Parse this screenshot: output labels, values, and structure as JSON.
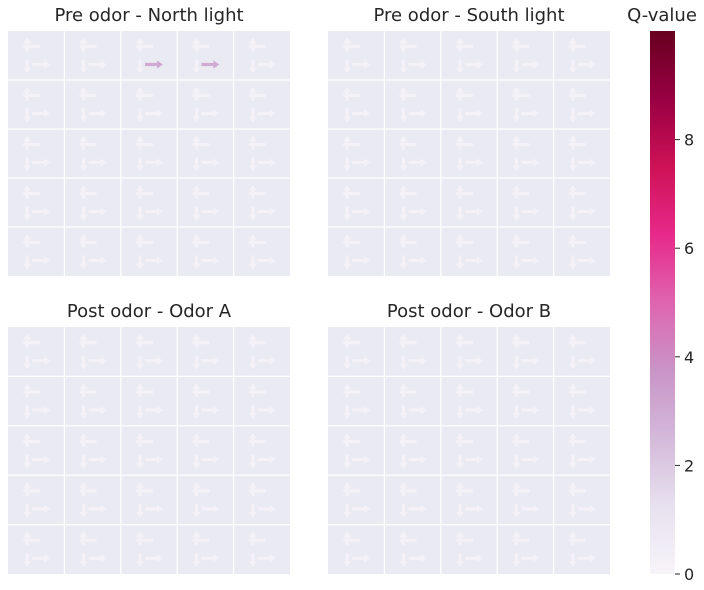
{
  "chart_data": [
    {
      "type": "heatmap",
      "title": "Pre odor - North light",
      "grid": [
        5,
        5
      ],
      "actions": [
        "up",
        "down",
        "left",
        "right"
      ],
      "q_values": [
        [
          [
            0.2,
            0.2,
            0.2,
            0.2
          ],
          [
            0.2,
            0.2,
            0.2,
            0.2
          ],
          [
            0.2,
            0.2,
            0.2,
            3.0
          ],
          [
            0.2,
            0.2,
            0.2,
            3.0
          ],
          [
            0.2,
            0.2,
            0.2,
            0.2
          ]
        ],
        [
          [
            0.2,
            0.2,
            0.2,
            0.2
          ],
          [
            0.2,
            0.2,
            0.2,
            0.2
          ],
          [
            0.2,
            0.2,
            0.2,
            0.2
          ],
          [
            0.2,
            0.2,
            0.2,
            0.2
          ],
          [
            0.2,
            0.2,
            0.2,
            0.2
          ]
        ],
        [
          [
            0.2,
            0.2,
            0.2,
            0.2
          ],
          [
            0.2,
            0.2,
            0.2,
            0.2
          ],
          [
            0.2,
            0.2,
            0.2,
            0.2
          ],
          [
            0.2,
            0.2,
            0.2,
            0.2
          ],
          [
            0.2,
            0.2,
            0.2,
            0.2
          ]
        ],
        [
          [
            0.2,
            0.2,
            0.2,
            0.2
          ],
          [
            0.2,
            0.2,
            0.2,
            0.2
          ],
          [
            0.2,
            0.2,
            0.2,
            0.2
          ],
          [
            0.2,
            0.2,
            0.2,
            0.2
          ],
          [
            0.2,
            0.2,
            0.2,
            0.2
          ]
        ],
        [
          [
            0.2,
            0.2,
            0.2,
            0.2
          ],
          [
            0.2,
            0.2,
            0.2,
            0.2
          ],
          [
            0.2,
            0.2,
            0.2,
            0.2
          ],
          [
            0.2,
            0.2,
            0.2,
            0.2
          ],
          [
            0.2,
            0.2,
            0.2,
            0.2
          ]
        ]
      ]
    },
    {
      "type": "heatmap",
      "title": "Pre odor - South light",
      "grid": [
        5,
        5
      ],
      "actions": [
        "up",
        "down",
        "left",
        "right"
      ],
      "q_values": [
        [
          [
            0.2,
            0.2,
            0.2,
            0.2
          ],
          [
            0.2,
            0.2,
            0.2,
            0.2
          ],
          [
            0.2,
            0.2,
            0.2,
            0.2
          ],
          [
            0.2,
            0.2,
            0.2,
            0.2
          ],
          [
            0.2,
            0.2,
            0.2,
            0.2
          ]
        ],
        [
          [
            0.2,
            0.2,
            0.2,
            0.2
          ],
          [
            0.2,
            0.2,
            0.2,
            0.2
          ],
          [
            0.2,
            0.2,
            0.2,
            0.2
          ],
          [
            0.2,
            0.2,
            0.2,
            0.2
          ],
          [
            0.2,
            0.2,
            0.2,
            0.2
          ]
        ],
        [
          [
            0.2,
            0.2,
            0.2,
            0.2
          ],
          [
            0.2,
            0.2,
            0.2,
            0.2
          ],
          [
            0.2,
            0.2,
            0.2,
            0.2
          ],
          [
            0.2,
            0.2,
            0.2,
            0.2
          ],
          [
            0.2,
            0.2,
            0.2,
            0.2
          ]
        ],
        [
          [
            0.2,
            0.2,
            0.2,
            0.2
          ],
          [
            0.2,
            0.2,
            0.2,
            0.2
          ],
          [
            0.2,
            0.2,
            0.2,
            0.2
          ],
          [
            0.2,
            0.2,
            0.2,
            0.2
          ],
          [
            0.2,
            0.2,
            0.2,
            0.2
          ]
        ],
        [
          [
            0.2,
            0.2,
            0.2,
            0.2
          ],
          [
            0.2,
            0.2,
            0.2,
            0.2
          ],
          [
            0.2,
            0.2,
            0.2,
            0.2
          ],
          [
            0.2,
            0.2,
            0.2,
            0.2
          ],
          [
            0.2,
            0.2,
            0.2,
            0.2
          ]
        ]
      ]
    },
    {
      "type": "heatmap",
      "title": "Post odor - Odor A",
      "grid": [
        5,
        5
      ],
      "actions": [
        "up",
        "down",
        "left",
        "right"
      ],
      "q_values": [
        [
          [
            0.2,
            0.2,
            0.2,
            0.2
          ],
          [
            0.2,
            0.2,
            0.2,
            0.2
          ],
          [
            0.2,
            0.2,
            0.2,
            0.2
          ],
          [
            0.2,
            0.2,
            0.2,
            0.2
          ],
          [
            0.2,
            0.2,
            0.2,
            0.2
          ]
        ],
        [
          [
            0.2,
            0.2,
            0.2,
            0.2
          ],
          [
            0.2,
            0.2,
            0.2,
            0.2
          ],
          [
            0.2,
            0.2,
            0.2,
            0.2
          ],
          [
            0.2,
            0.2,
            0.2,
            0.2
          ],
          [
            0.2,
            0.2,
            0.2,
            0.2
          ]
        ],
        [
          [
            0.2,
            0.2,
            0.2,
            0.2
          ],
          [
            0.2,
            0.2,
            0.2,
            0.2
          ],
          [
            0.2,
            0.2,
            0.2,
            0.2
          ],
          [
            0.2,
            0.2,
            0.2,
            0.2
          ],
          [
            0.2,
            0.2,
            0.2,
            0.2
          ]
        ],
        [
          [
            0.2,
            0.2,
            0.2,
            0.2
          ],
          [
            0.2,
            0.2,
            0.2,
            0.2
          ],
          [
            0.2,
            0.2,
            0.2,
            0.2
          ],
          [
            0.2,
            0.2,
            0.2,
            0.2
          ],
          [
            0.2,
            0.2,
            0.2,
            0.2
          ]
        ],
        [
          [
            0.2,
            0.2,
            0.2,
            0.2
          ],
          [
            0.2,
            0.2,
            0.2,
            0.2
          ],
          [
            0.2,
            0.2,
            0.2,
            0.2
          ],
          [
            0.2,
            0.2,
            0.2,
            0.2
          ],
          [
            0.2,
            0.2,
            0.2,
            0.2
          ]
        ]
      ]
    },
    {
      "type": "heatmap",
      "title": "Post odor - Odor B",
      "grid": [
        5,
        5
      ],
      "actions": [
        "up",
        "down",
        "left",
        "right"
      ],
      "q_values": [
        [
          [
            0.2,
            0.2,
            0.2,
            0.2
          ],
          [
            0.2,
            0.2,
            0.2,
            0.2
          ],
          [
            0.2,
            0.2,
            0.2,
            0.2
          ],
          [
            0.2,
            0.2,
            0.2,
            0.2
          ],
          [
            0.2,
            0.2,
            0.2,
            0.2
          ]
        ],
        [
          [
            0.2,
            0.2,
            0.2,
            0.2
          ],
          [
            0.2,
            0.2,
            0.2,
            0.2
          ],
          [
            0.2,
            0.2,
            0.2,
            0.2
          ],
          [
            0.2,
            0.2,
            0.2,
            0.2
          ],
          [
            0.2,
            0.2,
            0.2,
            0.2
          ]
        ],
        [
          [
            0.2,
            0.2,
            0.2,
            0.2
          ],
          [
            0.2,
            0.2,
            0.2,
            0.2
          ],
          [
            0.2,
            0.2,
            0.2,
            0.2
          ],
          [
            0.2,
            0.2,
            0.2,
            0.2
          ],
          [
            0.2,
            0.2,
            0.2,
            0.2
          ]
        ],
        [
          [
            0.2,
            0.2,
            0.2,
            0.2
          ],
          [
            0.2,
            0.2,
            0.2,
            0.2
          ],
          [
            0.2,
            0.2,
            0.2,
            0.2
          ],
          [
            0.2,
            0.2,
            0.2,
            0.2
          ],
          [
            0.2,
            0.2,
            0.2,
            0.2
          ]
        ],
        [
          [
            0.2,
            0.2,
            0.2,
            0.2
          ],
          [
            0.2,
            0.2,
            0.2,
            0.2
          ],
          [
            0.2,
            0.2,
            0.2,
            0.2
          ],
          [
            0.2,
            0.2,
            0.2,
            0.2
          ],
          [
            0.2,
            0.2,
            0.2,
            0.2
          ]
        ]
      ]
    }
  ],
  "colorbar": {
    "label": "Q-value",
    "range": [
      0,
      10
    ],
    "ticks": [
      0,
      2,
      4,
      6,
      8
    ],
    "colors": [
      "#f7f4f9",
      "#e7e1ef",
      "#d4b9da",
      "#c994c7",
      "#df65b0",
      "#e7298a",
      "#ce1256",
      "#980043",
      "#67001f"
    ]
  },
  "panel_bg": "#eaeaf2"
}
